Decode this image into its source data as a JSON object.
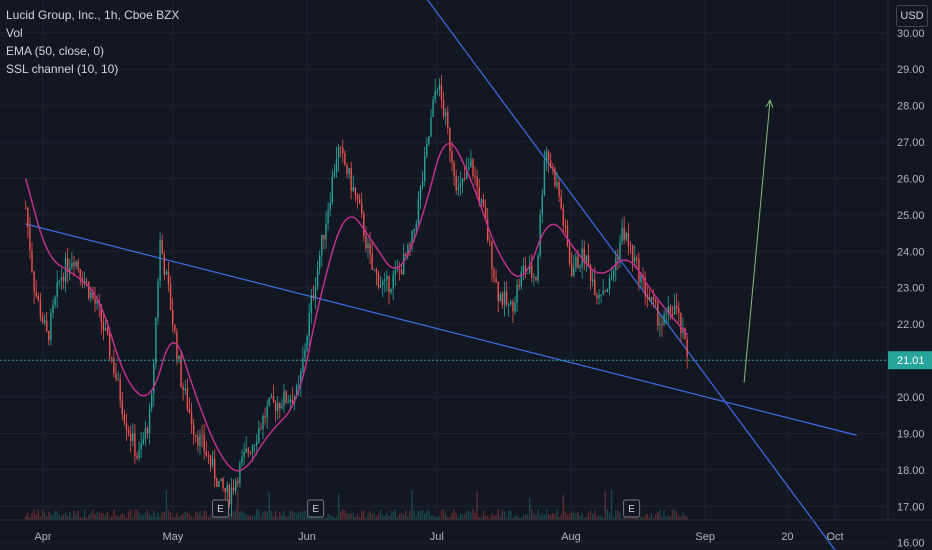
{
  "legend": {
    "symbol": "Lucid Group, Inc., 1h, Cboe BZX",
    "volume": "Vol",
    "ema": "EMA (50, close, 0)",
    "ssl": "SSL channel (10, 10)"
  },
  "currency": "USD",
  "colors": {
    "background": "#131722",
    "grid": "#1e222d",
    "up": "#26a69a",
    "down": "#ef5350",
    "ema": "#c0308f",
    "trendline": "#3d6ee8",
    "arrow": "#7fbf7f",
    "last_price": "#26a69a"
  },
  "chart_data": {
    "type": "candlestick",
    "x_ticks": [
      "Apr",
      "May",
      "Jun",
      "Jul",
      "Aug",
      "Sep",
      "20",
      "Oct"
    ],
    "y_ticks": [
      "16.00",
      "17.00",
      "18.00",
      "19.00",
      "20.00",
      "21.00",
      "22.00",
      "23.00",
      "24.00",
      "25.00",
      "26.00",
      "27.00",
      "28.00",
      "29.00",
      "30.00"
    ],
    "ylim": [
      15.8,
      30.9
    ],
    "last_price": "21.01",
    "price_path": [
      [
        "Mar 28",
        25.2
      ],
      [
        "Mar 30",
        23.0
      ],
      [
        "Apr 2",
        21.6
      ],
      [
        "Apr 5",
        23.3
      ],
      [
        "Apr 8",
        23.9
      ],
      [
        "Apr 11",
        23.1
      ],
      [
        "Apr 14",
        22.3
      ],
      [
        "Apr 17",
        21.0
      ],
      [
        "Apr 20",
        19.4
      ],
      [
        "Apr 23",
        18.3
      ],
      [
        "Apr 26",
        19.6
      ],
      [
        "Apr 28",
        24.3
      ],
      [
        "Apr 30",
        22.9
      ],
      [
        "May 3",
        20.4
      ],
      [
        "May 6",
        19.1
      ],
      [
        "May 9",
        18.4
      ],
      [
        "May 12",
        17.5
      ],
      [
        "May 14",
        17.3
      ],
      [
        "May 17",
        18.2
      ],
      [
        "May 20",
        18.9
      ],
      [
        "May 23",
        19.7
      ],
      [
        "May 26",
        19.9
      ],
      [
        "May 30",
        20.1
      ],
      [
        "Jun 2",
        22.6
      ],
      [
        "Jun 5",
        24.6
      ],
      [
        "Jun 8",
        26.8
      ],
      [
        "Jun 10",
        26.3
      ],
      [
        "Jun 13",
        25.2
      ],
      [
        "Jun 16",
        23.5
      ],
      [
        "Jun 19",
        23.0
      ],
      [
        "Jun 22",
        23.4
      ],
      [
        "Jun 25",
        24.1
      ],
      [
        "Jun 28",
        26.2
      ],
      [
        "Jul 1",
        28.7
      ],
      [
        "Jul 3",
        27.6
      ],
      [
        "Jul 6",
        25.6
      ],
      [
        "Jul 9",
        26.4
      ],
      [
        "Jul 12",
        24.9
      ],
      [
        "Jul 15",
        22.9
      ],
      [
        "Jul 18",
        22.4
      ],
      [
        "Jul 21",
        23.5
      ],
      [
        "Jul 24",
        23.3
      ],
      [
        "Jul 26",
        26.9
      ],
      [
        "Jul 29",
        25.7
      ],
      [
        "Aug 1",
        23.5
      ],
      [
        "Aug 4",
        23.9
      ],
      [
        "Aug 7",
        22.9
      ],
      [
        "Aug 10",
        23.1
      ],
      [
        "Aug 13",
        24.6
      ],
      [
        "Aug 16",
        23.6
      ],
      [
        "Aug 19",
        22.7
      ],
      [
        "Aug 22",
        22.0
      ],
      [
        "Aug 25",
        22.5
      ],
      [
        "Aug 28",
        21.1
      ]
    ],
    "ema_path": [
      [
        "Mar 28",
        26.0
      ],
      [
        "Apr 2",
        23.8
      ],
      [
        "Apr 8",
        23.4
      ],
      [
        "Apr 14",
        22.8
      ],
      [
        "Apr 20",
        20.4
      ],
      [
        "Apr 26",
        19.8
      ],
      [
        "May 1",
        22.0
      ],
      [
        "May 6",
        20.1
      ],
      [
        "May 12",
        18.3
      ],
      [
        "May 17",
        17.8
      ],
      [
        "May 23",
        19.0
      ],
      [
        "May 30",
        19.8
      ],
      [
        "Jun 4",
        22.8
      ],
      [
        "Jun 10",
        25.3
      ],
      [
        "Jun 16",
        24.3
      ],
      [
        "Jun 22",
        23.2
      ],
      [
        "Jun 28",
        25.0
      ],
      [
        "Jul 3",
        27.4
      ],
      [
        "Jul 9",
        26.0
      ],
      [
        "Jul 15",
        23.9
      ],
      [
        "Jul 21",
        23.0
      ],
      [
        "Jul 27",
        25.1
      ],
      [
        "Aug 2",
        24.0
      ],
      [
        "Aug 8",
        23.2
      ],
      [
        "Aug 14",
        24.0
      ],
      [
        "Aug 20",
        22.8
      ],
      [
        "Aug 28",
        21.7
      ]
    ],
    "trendlines": [
      {
        "from": [
          "Mar 28",
          24.75
        ],
        "to": [
          "Oct 6",
          18.95
        ]
      },
      {
        "from": [
          "Jun 27",
          31.2
        ],
        "to": [
          "Oct 1",
          15.8
        ]
      }
    ],
    "arrow": {
      "from": [
        "Sep 10",
        20.4
      ],
      "to": [
        "Sep 16",
        28.15
      ]
    },
    "earnings_markers": [
      {
        "date": "May 12",
        "label": "E"
      },
      {
        "date": "Jun 3",
        "label": "E"
      },
      {
        "date": "Aug 15",
        "label": "E"
      }
    ]
  }
}
